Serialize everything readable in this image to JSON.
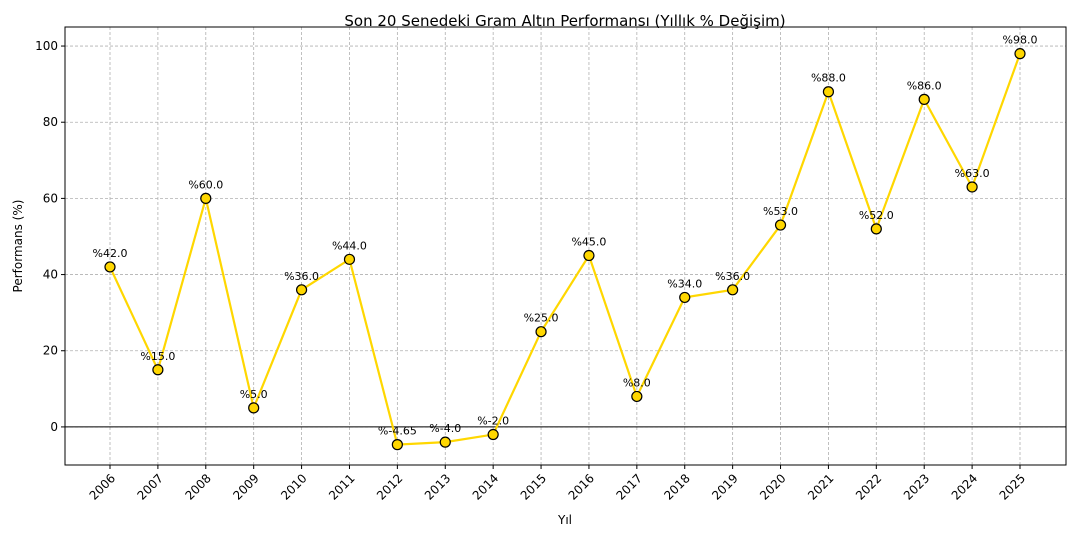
{
  "chart_data": {
    "type": "line",
    "title": "Son 20 Senedeki Gram Altın Performansı (Yıllık % Değişim)",
    "xlabel": "Yıl",
    "ylabel": "Performans (%)",
    "categories": [
      "2006",
      "2007",
      "2008",
      "2009",
      "2010",
      "2011",
      "2012",
      "2013",
      "2014",
      "2015",
      "2016",
      "2017",
      "2018",
      "2019",
      "2020",
      "2021",
      "2022",
      "2023",
      "2024",
      "2025"
    ],
    "values": [
      42.0,
      15.0,
      60.0,
      5.0,
      36.0,
      44.0,
      -4.65,
      -4.0,
      -2.0,
      25.0,
      45.0,
      8.0,
      34.0,
      36.0,
      53.0,
      88.0,
      52.0,
      86.0,
      63.0,
      98.0
    ],
    "data_labels": [
      "%42.0",
      "%15.0",
      "%60.0",
      "%5.0",
      "%36.0",
      "%44.0",
      "%-4.65",
      "%-4.0",
      "%-2.0",
      "%25.0",
      "%45.0",
      "%8.0",
      "%34.0",
      "%36.0",
      "%53.0",
      "%88.0",
      "%52.0",
      "%86.0",
      "%63.0",
      "%98.0"
    ],
    "ylim": [
      -10,
      105
    ],
    "yticks": [
      0,
      20,
      40,
      60,
      80,
      100
    ],
    "grid": true,
    "zero_line": true,
    "line_color": "#FFD700",
    "marker_edge_color": "#000000"
  }
}
